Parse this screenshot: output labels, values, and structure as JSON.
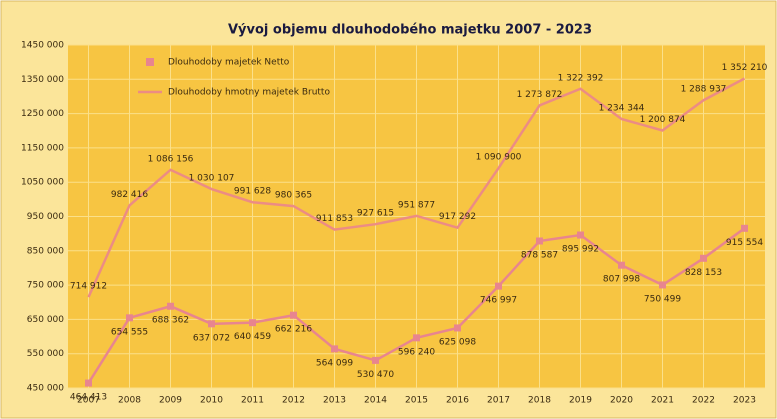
{
  "chart_data": {
    "type": "line",
    "title": "Vývoj objemu dlouhodobého majetku 2007 - 2023",
    "categories": [
      "2007",
      "2008",
      "2009",
      "2010",
      "2011",
      "2012",
      "2013",
      "2014",
      "2015",
      "2016",
      "2017",
      "2018",
      "2019",
      "2020",
      "2021",
      "2022",
      "2023"
    ],
    "series": [
      {
        "name": "Dlouhodoby majetek Netto",
        "color": "#e8858f",
        "marker": "square",
        "values": [
          464413,
          654555,
          688362,
          637072,
          640459,
          662216,
          564099,
          530470,
          596240,
          625098,
          746997,
          878587,
          895992,
          807998,
          750499,
          828153,
          915554
        ],
        "value_labels": [
          "464 413",
          "654 555",
          "688 362",
          "637 072",
          "640 459",
          "662 216",
          "564 099",
          "530 470",
          "596 240",
          "625 098",
          "746 997",
          "878 587",
          "895 992",
          "807 998",
          "750 499",
          "828 153",
          "915 554"
        ]
      },
      {
        "name": "Dlouhodoby hmotny majetek Brutto",
        "color": "#ec8c84",
        "values": [
          714912,
          982416,
          1086156,
          1030107,
          991628,
          980365,
          911853,
          927615,
          951877,
          917292,
          1090900,
          1273872,
          1322392,
          1234344,
          1200874,
          1288937,
          1352210
        ],
        "value_labels": [
          "714 912",
          "982 416",
          "1 086 156",
          "1 030 107",
          "991 628",
          "980 365",
          "911 853",
          "927 615",
          "951 877",
          "917 292",
          "1 090 900",
          "1 273 872",
          "1 322 392",
          "1 234 344",
          "1 200 874",
          "1 288 937",
          "1 352 210"
        ]
      }
    ],
    "ylim": [
      450000,
      1450000
    ],
    "yticks": [
      {
        "value": 450000,
        "label": "450 000"
      },
      {
        "value": 550000,
        "label": "550 000"
      },
      {
        "value": 650000,
        "label": "650 000"
      },
      {
        "value": 750000,
        "label": "750 000"
      },
      {
        "value": 850000,
        "label": "850 000"
      },
      {
        "value": 950000,
        "label": "950 000"
      },
      {
        "value": 1050000,
        "label": "1050 000"
      },
      {
        "value": 1150000,
        "label": "1150 000"
      },
      {
        "value": 1250000,
        "label": "1250 000"
      },
      {
        "value": 1350000,
        "label": "1350 000"
      },
      {
        "value": 1450000,
        "label": "1450 000"
      }
    ],
    "grid": true,
    "legend": "top-left"
  }
}
